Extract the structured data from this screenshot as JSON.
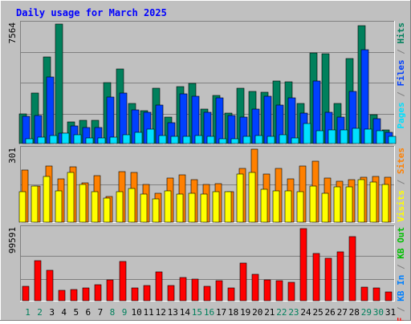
{
  "colors": {
    "background": "#c0c0c0",
    "plot_bg": "#c0c0c0",
    "border_dark": "#808080",
    "border_light": "#ffffff",
    "grid": "#808080",
    "title": "#0000ff",
    "hits": "#00805c",
    "files": "#0040ff",
    "pages": "#00e0ff",
    "visits": "#ffff00",
    "sites": "#ff8000",
    "kb_f": "#ff0000",
    "kb_in": "#0080ff",
    "kb_out": "#00c000",
    "day_weekday": "#000000",
    "day_weekend": "#00805c"
  },
  "chart_data": {
    "type": "bar",
    "title": "Daily usage for March 2025",
    "categories": [
      "1",
      "2",
      "3",
      "4",
      "5",
      "6",
      "7",
      "8",
      "9",
      "10",
      "11",
      "12",
      "13",
      "14",
      "15",
      "16",
      "17",
      "18",
      "19",
      "20",
      "21",
      "22",
      "23",
      "24",
      "25",
      "26",
      "27",
      "28",
      "29",
      "30",
      "31"
    ],
    "weekend_days": [
      "1",
      "2",
      "8",
      "9",
      "15",
      "16",
      "22",
      "23",
      "29",
      "30"
    ],
    "panels": [
      {
        "name": "hits-files-pages",
        "max_label": "7564",
        "ymax": 7564,
        "legend": [
          {
            "text": "Pages",
            "color_key": "pages"
          },
          {
            "text": " / ",
            "color_key": "border_dark"
          },
          {
            "text": "Files",
            "color_key": "files"
          },
          {
            "text": " / ",
            "color_key": "border_dark"
          },
          {
            "text": "Hits",
            "color_key": "hits"
          }
        ],
        "series": [
          {
            "name": "Hits",
            "color_key": "hits",
            "values": [
              1900,
              3200,
              5500,
              7564,
              1350,
              1450,
              1450,
              3850,
              4700,
              2550,
              2100,
              3500,
              1700,
              3600,
              3800,
              2200,
              3050,
              1950,
              3500,
              3300,
              3250,
              3950,
              3900,
              2550,
              5750,
              5700,
              2550,
              5400,
              7450,
              1850,
              850
            ]
          },
          {
            "name": "Files",
            "color_key": "files",
            "values": [
              1750,
              1800,
              4200,
              650,
              1100,
              1000,
              1000,
              2950,
              3200,
              2150,
              2000,
              2450,
              1300,
              3150,
              3000,
              2000,
              2900,
              1800,
              1650,
              2200,
              3000,
              2450,
              2900,
              1950,
              3950,
              2000,
              1700,
              3300,
              5950,
              1550,
              700
            ]
          },
          {
            "name": "Pages",
            "color_key": "pages",
            "values": [
              300,
              400,
              500,
              650,
              550,
              350,
              350,
              400,
              550,
              700,
              900,
              500,
              450,
              450,
              500,
              450,
              300,
              300,
              450,
              500,
              450,
              550,
              350,
              1250,
              800,
              850,
              850,
              950,
              900,
              800,
              450
            ]
          }
        ]
      },
      {
        "name": "visits-sites",
        "max_label": "301",
        "ymax": 301,
        "legend": [
          {
            "text": "Visits",
            "color_key": "visits"
          },
          {
            "text": " / ",
            "color_key": "border_dark"
          },
          {
            "text": "Sites",
            "color_key": "sites"
          }
        ],
        "series": [
          {
            "name": "Sites",
            "color_key": "sites",
            "values": [
              215,
              150,
              232,
              180,
              227,
              162,
              192,
              107,
              207,
              205,
              157,
              120,
              182,
              195,
              175,
              157,
              160,
              127,
              222,
              301,
              200,
              222,
              180,
              232,
              250,
              182,
              170,
              175,
              185,
              190,
              185
            ]
          },
          {
            "name": "Visits",
            "color_key": "visits",
            "values": [
              125,
              150,
              190,
              130,
              205,
              155,
              125,
              100,
              125,
              140,
              115,
              95,
              130,
              115,
              120,
              115,
              125,
              125,
              200,
              205,
              135,
              130,
              130,
              125,
              150,
              120,
              145,
              145,
              175,
              165,
              155
            ]
          }
        ]
      },
      {
        "name": "kbf-kbin-kbout",
        "max_label": "99591",
        "ymax": 99591,
        "legend": [
          {
            "text": "KB F",
            "color_key": "kb_f"
          },
          {
            "text": " / ",
            "color_key": "border_dark"
          },
          {
            "text": "KB In",
            "color_key": "kb_in"
          },
          {
            "text": " / ",
            "color_key": "border_dark"
          },
          {
            "text": "KB Out",
            "color_key": "kb_out"
          }
        ],
        "series": [
          {
            "name": "KB F",
            "color_key": "kb_f",
            "values": [
              20000,
              55000,
              42000,
              14000,
              16000,
              18000,
              22000,
              29000,
              54000,
              18000,
              21000,
              40000,
              21000,
              32000,
              30000,
              20000,
              28000,
              18000,
              52000,
              37000,
              29000,
              28000,
              25000,
              99591,
              65000,
              59000,
              68000,
              89000,
              19000,
              18000,
              12000
            ]
          }
        ]
      }
    ]
  }
}
